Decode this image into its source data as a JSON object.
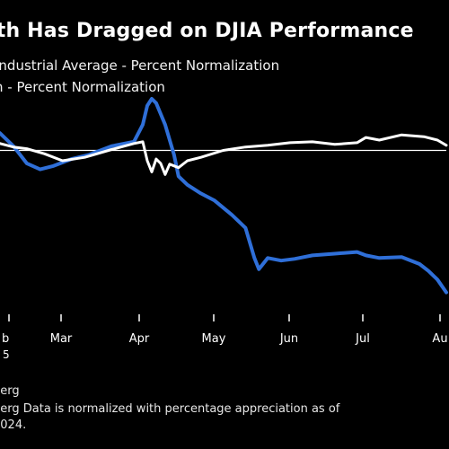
{
  "header": {
    "title": "lth Has Dragged on DJIA Performance",
    "legend_1": "Industrial Average - Percent Normalization",
    "legend_2": "h - Percent Normalization"
  },
  "footer": {
    "source": "berg",
    "note_1": "berg Data is normalized with percentage appreciation as of",
    "note_2": "2024."
  },
  "colors": {
    "background": "#000000",
    "djia_line": "#ffffff",
    "unh_line": "#2f6fd8",
    "baseline": "#ffffff"
  },
  "chart_data": {
    "type": "line",
    "title": "lth Has Dragged on DJIA Performance",
    "xlabel": "",
    "ylabel": "",
    "x_ticks": [
      "b",
      "Mar",
      "Apr",
      "May",
      "Jun",
      "Jul",
      "Au"
    ],
    "year_label": "5",
    "ylim": [
      -18,
      6
    ],
    "baseline_value": 0,
    "grid": false,
    "series": [
      {
        "name": "Industrial Average - Percent Normalization",
        "color": "#ffffff",
        "x": [
          0,
          0.03,
          0.06,
          0.1,
          0.14,
          0.19,
          0.25,
          0.3,
          0.32,
          0.33,
          0.34,
          0.35,
          0.36,
          0.37,
          0.38,
          0.4,
          0.42,
          0.45,
          0.5,
          0.55,
          0.6,
          0.65,
          0.7,
          0.75,
          0.8,
          0.82,
          0.85,
          0.9,
          0.95,
          0.98,
          1.0
        ],
        "y": [
          0.8,
          0.4,
          0.2,
          -0.4,
          -1.2,
          -0.8,
          0.1,
          0.8,
          1.0,
          -1.2,
          -2.5,
          -1.0,
          -1.5,
          -2.8,
          -1.6,
          -2.0,
          -1.2,
          -0.8,
          0.0,
          0.4,
          0.6,
          0.9,
          1.0,
          0.7,
          0.9,
          1.5,
          1.2,
          1.8,
          1.6,
          1.2,
          0.6
        ]
      },
      {
        "name": "h - Percent Normalization",
        "color": "#2f6fd8",
        "x": [
          0,
          0.03,
          0.06,
          0.09,
          0.12,
          0.16,
          0.2,
          0.25,
          0.3,
          0.32,
          0.33,
          0.34,
          0.35,
          0.37,
          0.39,
          0.4,
          0.42,
          0.45,
          0.48,
          0.52,
          0.55,
          0.57,
          0.58,
          0.6,
          0.63,
          0.66,
          0.7,
          0.75,
          0.8,
          0.82,
          0.85,
          0.9,
          0.94,
          0.96,
          0.98,
          1.0
        ],
        "y": [
          2.0,
          0.5,
          -1.5,
          -2.2,
          -1.8,
          -1.0,
          -0.5,
          0.5,
          1.0,
          3.0,
          5.2,
          6.0,
          5.5,
          3.0,
          -0.5,
          -3.0,
          -4.0,
          -5.0,
          -5.8,
          -7.5,
          -9.0,
          -12.5,
          -13.8,
          -12.5,
          -12.8,
          -12.6,
          -12.2,
          -12.0,
          -11.8,
          -12.2,
          -12.5,
          -12.4,
          -13.2,
          -14.0,
          -15.0,
          -16.5
        ]
      }
    ]
  }
}
